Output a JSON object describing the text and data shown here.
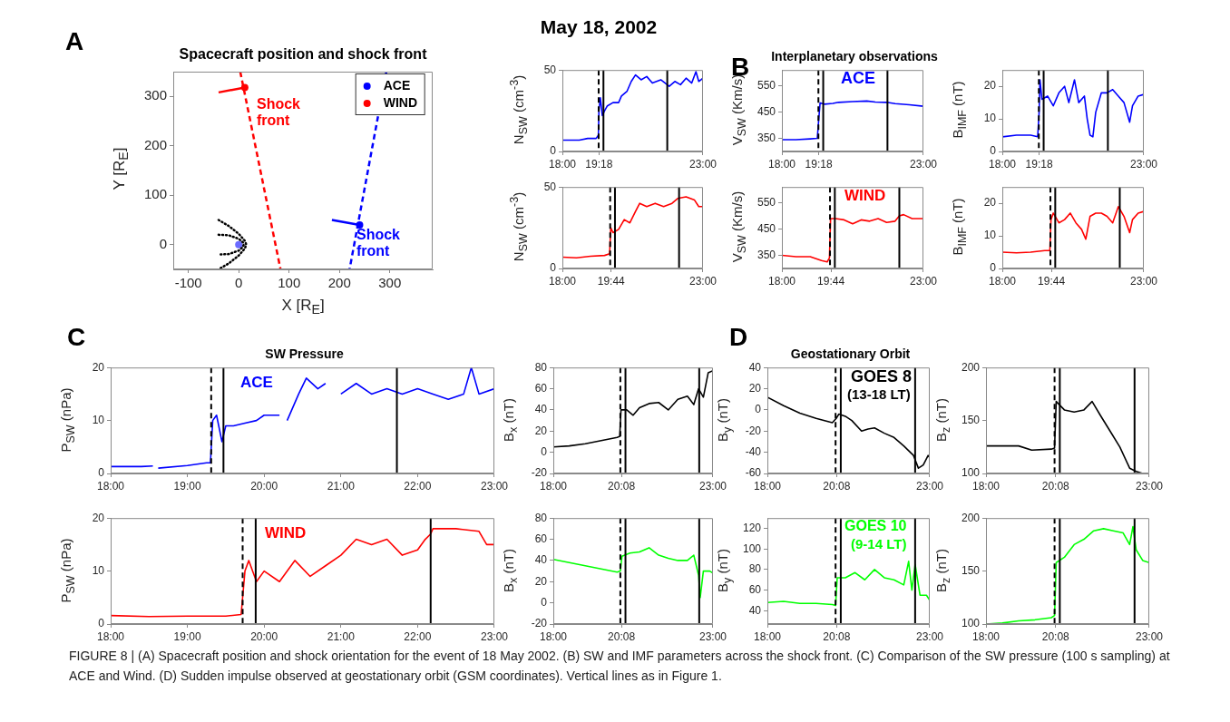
{
  "chart_data": [
    {
      "type": "line",
      "title": "Spacecraft position and shock front",
      "xlabel": "X [R$_{E}$]",
      "ylabel": "Y [R$_{E}$]",
      "xlim": [
        -130,
        385
      ],
      "ylim": [
        -50,
        350
      ],
      "xticks": [
        -100,
        0,
        100,
        200,
        300
      ],
      "yticks": [
        0,
        100,
        200,
        300
      ],
      "legend": "top right",
      "series": [
        {
          "color": "#ff0000",
          "line_style": "dashed",
          "x": [
            3,
            83
          ],
          "values": [
            350,
            -50
          ]
        },
        {
          "color": "#0000ff",
          "line_style": "dashed",
          "x": [
            293,
            220
          ],
          "values": [
            350,
            -50
          ]
        },
        {
          "name": "ACE",
          "type": "scatter",
          "marker": "circle",
          "color": "#0000ff",
          "x": [
            240
          ],
          "values": [
            40
          ]
        },
        {
          "name": "WIND",
          "type": "scatter",
          "marker": "circle",
          "color": "#ff0000",
          "x": [
            12
          ],
          "values": [
            318
          ]
        },
        {
          "color": "#0000ff",
          "x": [
            240,
            185
          ],
          "values": [
            40,
            50
          ]
        },
        {
          "color": "#ff0000",
          "x": [
            12,
            -40
          ],
          "values": [
            318,
            308
          ]
        },
        {
          "color": "#000000",
          "line_style": "dotted",
          "x": [
            -40,
            -20,
            0,
            12,
            15,
            12,
            0,
            -20,
            -40
          ],
          "values": [
            50,
            38,
            22,
            8,
            0,
            -8,
            -22,
            -38,
            -50
          ]
        },
        {
          "color": "#000000",
          "line_style": "dotted",
          "x": [
            -40,
            -20,
            0,
            8,
            10,
            8,
            0,
            -20,
            -40
          ],
          "values": [
            20,
            19,
            12,
            5,
            0,
            -5,
            -12,
            -19,
            -20
          ]
        },
        {
          "type": "scatter",
          "marker": "circle",
          "color": "#6a6aff",
          "x": [
            0
          ],
          "values": [
            0
          ]
        }
      ],
      "annotations": [
        "Shock front",
        "Shock front",
        "A"
      ]
    },
    {
      "type": "line",
      "ylabel": "N$_{SW}$ (cm$^{-3}$)",
      "xlim": [
        18,
        23
      ],
      "ylim": [
        0,
        50
      ],
      "xticks": [
        {
          "value": 18,
          "label": "18:00"
        },
        {
          "value": 19.3,
          "label": "19:18"
        },
        {
          "value": 23,
          "label": "23:00"
        }
      ],
      "yticks": [
        0,
        50
      ],
      "series": [
        {
          "color": "#0000ff",
          "x": [
            18,
            18.3,
            18.6,
            18.9,
            19.2,
            19.28,
            19.3,
            19.35,
            19.42,
            19.5,
            19.6,
            19.8,
            20,
            20.1,
            20.3,
            20.45,
            20.6,
            20.8,
            21,
            21.2,
            21.5,
            21.8,
            22,
            22.2,
            22.4,
            22.6,
            22.75,
            22.85,
            23
          ],
          "values": [
            7,
            7,
            7,
            8,
            8,
            10,
            25,
            33,
            22,
            25,
            28,
            30,
            30,
            34,
            37,
            43,
            47,
            44,
            46,
            42,
            44,
            40,
            43,
            41,
            45,
            42,
            49,
            43,
            45
          ]
        }
      ],
      "ref_lines": [
        {
          "axis": "x",
          "value": 19.29,
          "color": "#000000",
          "line_style": "dashed"
        },
        {
          "axis": "x",
          "value": 19.46,
          "color": "#000000",
          "line_style": "solid"
        },
        {
          "axis": "x",
          "value": 21.73,
          "color": "#000000",
          "line_style": "solid"
        }
      ],
      "annotations": [
        "May 18, 2002"
      ]
    },
    {
      "type": "line",
      "title": "Interplanetary observations",
      "ylabel": "V$_{SW}$ (Km/s)",
      "xlim": [
        18,
        23
      ],
      "ylim": [
        300,
        610
      ],
      "xticks": [
        {
          "value": 18,
          "label": "18:00"
        },
        {
          "value": 19.3,
          "label": "19:18"
        },
        {
          "value": 23,
          "label": "23:00"
        }
      ],
      "yticks": [
        350,
        450,
        550
      ],
      "series": [
        {
          "color": "#0000ff",
          "x": [
            18,
            18.5,
            19,
            19.25,
            19.3,
            19.35,
            19.5,
            19.8,
            20,
            20.5,
            21,
            21.3,
            21.7,
            22,
            22.5,
            23
          ],
          "values": [
            345,
            345,
            348,
            350,
            420,
            485,
            480,
            483,
            487,
            490,
            492,
            488,
            487,
            482,
            478,
            472
          ]
        }
      ],
      "ref_lines": [
        {
          "axis": "x",
          "value": 19.29,
          "color": "#000000",
          "line_style": "dashed"
        },
        {
          "axis": "x",
          "value": 19.46,
          "color": "#000000",
          "line_style": "solid"
        },
        {
          "axis": "x",
          "value": 21.73,
          "color": "#000000",
          "line_style": "solid"
        }
      ],
      "annotations": [
        "ACE",
        "B"
      ]
    },
    {
      "type": "line",
      "ylabel": "B$_{IMF}$ (nT)",
      "xlim": [
        18,
        23
      ],
      "ylim": [
        0,
        25
      ],
      "xticks": [
        {
          "value": 18,
          "label": "18:00"
        },
        {
          "value": 19.3,
          "label": "19:18"
        },
        {
          "value": 23,
          "label": "23:00"
        }
      ],
      "yticks": [
        0,
        10,
        20
      ],
      "series": [
        {
          "color": "#0000ff",
          "x": [
            18,
            18.5,
            19,
            19.25,
            19.3,
            19.33,
            19.4,
            19.6,
            19.8,
            20,
            20.2,
            20.35,
            20.55,
            20.7,
            20.9,
            21,
            21.1,
            21.2,
            21.3,
            21.5,
            21.7,
            21.9,
            22.1,
            22.3,
            22.5,
            22.6,
            22.8,
            23
          ],
          "values": [
            4.5,
            5,
            5,
            4.5,
            12,
            22,
            16,
            17,
            14,
            18,
            20,
            15,
            22,
            15,
            17,
            10,
            5,
            4.5,
            12,
            18,
            18,
            19,
            17,
            15,
            9,
            14,
            17,
            17.5
          ]
        }
      ],
      "ref_lines": [
        {
          "axis": "x",
          "value": 19.29,
          "color": "#000000",
          "line_style": "dashed"
        },
        {
          "axis": "x",
          "value": 19.46,
          "color": "#000000",
          "line_style": "solid"
        },
        {
          "axis": "x",
          "value": 21.73,
          "color": "#000000",
          "line_style": "solid"
        }
      ]
    },
    {
      "type": "line",
      "ylabel": "N$_{SW}$ (cm$^{-3}$)",
      "xlim": [
        18,
        23
      ],
      "ylim": [
        0,
        50
      ],
      "xticks": [
        {
          "value": 18,
          "label": "18:00"
        },
        {
          "value": 19.733,
          "label": "19:44"
        },
        {
          "value": 23,
          "label": "23:00"
        }
      ],
      "yticks": [
        0,
        50
      ],
      "series": [
        {
          "color": "#ff0000",
          "x": [
            18,
            18.5,
            19,
            19.5,
            19.68,
            19.72,
            19.8,
            20,
            20.2,
            20.4,
            20.6,
            20.75,
            21,
            21.3,
            21.6,
            21.9,
            22.1,
            22.4,
            22.7,
            22.85,
            23
          ],
          "values": [
            7,
            6.5,
            7.5,
            8,
            9,
            25,
            22,
            24,
            30,
            28,
            35,
            40,
            38,
            40,
            38,
            40,
            43,
            44,
            42,
            38,
            38
          ]
        }
      ],
      "ref_lines": [
        {
          "axis": "x",
          "value": 19.7,
          "color": "#000000",
          "line_style": "dashed"
        },
        {
          "axis": "x",
          "value": 19.87,
          "color": "#000000",
          "line_style": "solid"
        },
        {
          "axis": "x",
          "value": 22.15,
          "color": "#000000",
          "line_style": "solid"
        }
      ]
    },
    {
      "type": "line",
      "ylabel": "V$_{SW}$ (Km/s)",
      "xlim": [
        18,
        23
      ],
      "ylim": [
        300,
        610
      ],
      "xticks": [
        {
          "value": 18,
          "label": "18:00"
        },
        {
          "value": 19.733,
          "label": "19:44"
        },
        {
          "value": 23,
          "label": "23:00"
        }
      ],
      "yticks": [
        350,
        450,
        550
      ],
      "series": [
        {
          "color": "#ff0000",
          "x": [
            18,
            18.5,
            19,
            19.4,
            19.6,
            19.68,
            19.72,
            19.9,
            20.2,
            20.5,
            20.8,
            21.1,
            21.4,
            21.7,
            22,
            22.15,
            22.3,
            22.6,
            23
          ],
          "values": [
            350,
            345,
            345,
            330,
            325,
            340,
            490,
            490,
            485,
            470,
            485,
            480,
            490,
            475,
            480,
            500,
            505,
            490,
            490
          ]
        }
      ],
      "ref_lines": [
        {
          "axis": "x",
          "value": 19.7,
          "color": "#000000",
          "line_style": "dashed"
        },
        {
          "axis": "x",
          "value": 19.87,
          "color": "#000000",
          "line_style": "solid"
        },
        {
          "axis": "x",
          "value": 22.15,
          "color": "#000000",
          "line_style": "solid"
        }
      ],
      "annotations": [
        "WIND"
      ]
    },
    {
      "type": "line",
      "ylabel": "B$_{IMF}$ (nT)",
      "xlim": [
        18,
        23
      ],
      "ylim": [
        0,
        25
      ],
      "xticks": [
        {
          "value": 18,
          "label": "18:00"
        },
        {
          "value": 19.733,
          "label": "19:44"
        },
        {
          "value": 23,
          "label": "23:00"
        }
      ],
      "yticks": [
        0,
        10,
        20
      ],
      "series": [
        {
          "color": "#ff0000",
          "x": [
            18,
            18.5,
            19,
            19.5,
            19.68,
            19.72,
            19.8,
            20,
            20.2,
            20.4,
            20.6,
            20.8,
            20.95,
            21.1,
            21.3,
            21.5,
            21.7,
            21.9,
            22.1,
            22.3,
            22.5,
            22.6,
            22.8,
            23
          ],
          "values": [
            5,
            4.8,
            5,
            5.5,
            5.5,
            15,
            17,
            14,
            15,
            17,
            14,
            12,
            9,
            16,
            17,
            17,
            16,
            14,
            19,
            16,
            11,
            15,
            17,
            17.5
          ]
        }
      ],
      "ref_lines": [
        {
          "axis": "x",
          "value": 19.7,
          "color": "#000000",
          "line_style": "dashed"
        },
        {
          "axis": "x",
          "value": 19.87,
          "color": "#000000",
          "line_style": "solid"
        },
        {
          "axis": "x",
          "value": 22.15,
          "color": "#000000",
          "line_style": "solid"
        }
      ]
    },
    {
      "type": "line",
      "title": "SW Pressure",
      "ylabel": "P$_{SW}$ (nPa)",
      "xlim": [
        18,
        23
      ],
      "ylim": [
        0,
        20
      ],
      "xticks": [
        {
          "value": 18,
          "label": "18:00"
        },
        {
          "value": 19,
          "label": "19:00"
        },
        {
          "value": 20,
          "label": "20:00"
        },
        {
          "value": 21,
          "label": "21:00"
        },
        {
          "value": 22,
          "label": "22:00"
        },
        {
          "value": 23,
          "label": "23:00"
        }
      ],
      "yticks": [
        0,
        10,
        20
      ],
      "series": [
        {
          "color": "#0000ff",
          "x": [
            18,
            18.4,
            18.55,
            18.6,
            18.62,
            19,
            19.25,
            19.3,
            19.33,
            19.38,
            19.45,
            19.5,
            19.6,
            19.75,
            19.9,
            20,
            20.2,
            20.27,
            20.3,
            20.45,
            20.55,
            20.7,
            20.8,
            20.9,
            21,
            21.2,
            21.4,
            21.6,
            21.8,
            22,
            22.2,
            22.4,
            22.6,
            22.7,
            22.8,
            23
          ],
          "values": [
            1.3,
            1.3,
            1.4,
            null,
            1,
            1.5,
            2,
            2,
            10,
            11,
            6,
            9,
            9,
            9.5,
            10,
            11,
            11,
            null,
            10,
            15,
            18,
            16,
            17,
            null,
            15,
            17,
            15,
            16,
            15,
            16,
            15,
            14,
            15,
            20,
            15,
            16
          ]
        }
      ],
      "ref_lines": [
        {
          "axis": "x",
          "value": 19.31,
          "color": "#000000",
          "line_style": "dashed"
        },
        {
          "axis": "x",
          "value": 19.47,
          "color": "#000000",
          "line_style": "solid"
        },
        {
          "axis": "x",
          "value": 21.73,
          "color": "#000000",
          "line_style": "solid"
        }
      ],
      "annotations": [
        "ACE",
        "C"
      ]
    },
    {
      "type": "line",
      "ylabel": "B$_{x}$ (nT)",
      "xlim": [
        18,
        23
      ],
      "ylim": [
        -20,
        80
      ],
      "xticks": [
        {
          "value": 18,
          "label": "18:00"
        },
        {
          "value": 20.133,
          "label": "20:08"
        },
        {
          "value": 23,
          "label": "23:00"
        }
      ],
      "yticks": [
        -20,
        0,
        20,
        40,
        60,
        80
      ],
      "series": [
        {
          "color": "#000000",
          "x": [
            18,
            18.5,
            19,
            19.5,
            20,
            20.08,
            20.12,
            20.3,
            20.5,
            20.7,
            21,
            21.3,
            21.6,
            21.9,
            22.2,
            22.4,
            22.55,
            22.7,
            22.85,
            23
          ],
          "values": [
            5,
            6,
            8,
            11,
            14,
            15,
            40,
            40,
            35,
            42,
            46,
            47,
            40,
            50,
            53,
            45,
            60,
            52,
            75,
            77
          ]
        }
      ],
      "ref_lines": [
        {
          "axis": "x",
          "value": 20.1,
          "color": "#000000",
          "line_style": "dashed"
        },
        {
          "axis": "x",
          "value": 20.26,
          "color": "#000000",
          "line_style": "solid"
        },
        {
          "axis": "x",
          "value": 22.57,
          "color": "#000000",
          "line_style": "solid"
        }
      ]
    },
    {
      "type": "line",
      "title": "Geostationary Orbit",
      "ylabel": "B$_{y}$ (nT)",
      "xlim": [
        18,
        23
      ],
      "ylim": [
        -60,
        40
      ],
      "xticks": [
        {
          "value": 18,
          "label": "18:00"
        },
        {
          "value": 20.133,
          "label": "20:08"
        },
        {
          "value": 23,
          "label": "23:00"
        }
      ],
      "yticks": [
        -60,
        -40,
        -20,
        0,
        20,
        40
      ],
      "series": [
        {
          "color": "#000000",
          "x": [
            18,
            18.5,
            19,
            19.5,
            20,
            20.12,
            20.2,
            20.4,
            20.6,
            20.9,
            21.1,
            21.3,
            21.6,
            21.9,
            22.2,
            22.5,
            22.65,
            22.8,
            22.95,
            23
          ],
          "values": [
            12,
            4,
            -3,
            -8,
            -12,
            -8,
            -4,
            -6,
            -10,
            -20,
            -18,
            -17,
            -22,
            -26,
            -34,
            -43,
            -55,
            -52,
            -43,
            -45
          ]
        }
      ],
      "ref_lines": [
        {
          "axis": "x",
          "value": 20.1,
          "color": "#000000",
          "line_style": "dashed"
        },
        {
          "axis": "x",
          "value": 20.26,
          "color": "#000000",
          "line_style": "solid"
        },
        {
          "axis": "x",
          "value": 22.55,
          "color": "#000000",
          "line_style": "solid"
        }
      ],
      "annotations": [
        "GOES 8",
        "(13-18 LT)",
        "D"
      ]
    },
    {
      "type": "line",
      "ylabel": "B$_{z}$ (nT)",
      "xlim": [
        18,
        23
      ],
      "ylim": [
        100,
        200
      ],
      "xticks": [
        {
          "value": 18,
          "label": "18:00"
        },
        {
          "value": 20.133,
          "label": "20:08"
        },
        {
          "value": 23,
          "label": "23:00"
        }
      ],
      "yticks": [
        100,
        150,
        200
      ],
      "series": [
        {
          "color": "#000000",
          "x": [
            18,
            18.5,
            19,
            19.4,
            20,
            20.1,
            20.15,
            20.4,
            20.7,
            21,
            21.25,
            21.5,
            21.8,
            22.1,
            22.4,
            22.6,
            22.8
          ],
          "values": [
            126,
            126,
            126,
            122,
            123,
            124,
            168,
            160,
            158,
            160,
            168,
            155,
            140,
            125,
            105,
            102,
            100
          ]
        }
      ],
      "ref_lines": [
        {
          "axis": "x",
          "value": 20.1,
          "color": "#000000",
          "line_style": "dashed"
        },
        {
          "axis": "x",
          "value": 20.26,
          "color": "#000000",
          "line_style": "solid"
        },
        {
          "axis": "x",
          "value": 22.55,
          "color": "#000000",
          "line_style": "solid"
        }
      ]
    },
    {
      "type": "line",
      "ylabel": "P$_{SW}$ (nPa)",
      "xlim": [
        18,
        23
      ],
      "ylim": [
        0,
        20
      ],
      "xticks": [
        {
          "value": 18,
          "label": "18:00"
        },
        {
          "value": 19,
          "label": "19:00"
        },
        {
          "value": 20,
          "label": "20:00"
        },
        {
          "value": 21,
          "label": "21:00"
        },
        {
          "value": 22,
          "label": "22:00"
        },
        {
          "value": 23,
          "label": "23:00"
        }
      ],
      "yticks": [
        0,
        10,
        20
      ],
      "series": [
        {
          "color": "#ff0000",
          "x": [
            18,
            18.5,
            19,
            19.5,
            19.7,
            19.75,
            19.8,
            19.9,
            20,
            20.2,
            20.4,
            20.6,
            20.8,
            21,
            21.2,
            21.4,
            21.6,
            21.8,
            22,
            22.1,
            22.17,
            22.2,
            22.5,
            22.8,
            22.9,
            23
          ],
          "values": [
            1.6,
            1.4,
            1.5,
            1.5,
            1.8,
            10,
            12,
            8,
            10,
            8,
            12,
            9,
            11,
            13,
            16,
            15,
            16,
            13,
            14,
            16,
            17,
            18,
            18,
            17.5,
            15,
            15
          ]
        }
      ],
      "ref_lines": [
        {
          "axis": "x",
          "value": 19.72,
          "color": "#000000",
          "line_style": "dashed"
        },
        {
          "axis": "x",
          "value": 19.89,
          "color": "#000000",
          "line_style": "solid"
        },
        {
          "axis": "x",
          "value": 22.17,
          "color": "#000000",
          "line_style": "solid"
        }
      ],
      "annotations": [
        "WIND"
      ]
    },
    {
      "type": "line",
      "ylabel": "B$_{x}$ (nT)",
      "xlim": [
        18,
        23
      ],
      "ylim": [
        -20,
        80
      ],
      "xticks": [
        {
          "value": 18,
          "label": "18:00"
        },
        {
          "value": 20.133,
          "label": "20:08"
        },
        {
          "value": 23,
          "label": "23:00"
        }
      ],
      "yticks": [
        -20,
        0,
        20,
        40,
        60,
        80
      ],
      "series": [
        {
          "color": "#00ff00",
          "x": [
            18,
            18.5,
            19,
            19.5,
            20,
            20.1,
            20.15,
            20.4,
            20.7,
            21,
            21.3,
            21.6,
            21.9,
            22.2,
            22.4,
            22.55,
            22.6,
            22.7,
            22.9,
            23
          ],
          "values": [
            41,
            38,
            35,
            32,
            29,
            30,
            44,
            47,
            48,
            52,
            45,
            42,
            40,
            40,
            45,
            26,
            5,
            30,
            30,
            28
          ]
        }
      ],
      "ref_lines": [
        {
          "axis": "x",
          "value": 20.1,
          "color": "#000000",
          "line_style": "dashed"
        },
        {
          "axis": "x",
          "value": 20.26,
          "color": "#000000",
          "line_style": "solid"
        },
        {
          "axis": "x",
          "value": 22.57,
          "color": "#000000",
          "line_style": "solid"
        }
      ]
    },
    {
      "type": "line",
      "ylabel": "B$_{y}$ (nT)",
      "xlim": [
        18,
        23
      ],
      "ylim": [
        27,
        130
      ],
      "xticks": [
        {
          "value": 18,
          "label": "18:00"
        },
        {
          "value": 20.133,
          "label": "20:08"
        },
        {
          "value": 23,
          "label": "23:00"
        }
      ],
      "yticks": [
        40,
        60,
        80,
        100,
        120
      ],
      "series": [
        {
          "color": "#00ff00",
          "x": [
            18,
            18.5,
            19,
            19.5,
            20,
            20.1,
            20.15,
            20.4,
            20.7,
            21,
            21.3,
            21.6,
            21.9,
            22.2,
            22.35,
            22.45,
            22.55,
            22.7,
            22.9,
            23
          ],
          "values": [
            48,
            49,
            47,
            47,
            46,
            45,
            72,
            72,
            77,
            70,
            80,
            72,
            70,
            65,
            88,
            60,
            85,
            55,
            55,
            50
          ]
        }
      ],
      "ref_lines": [
        {
          "axis": "x",
          "value": 20.1,
          "color": "#000000",
          "line_style": "dashed"
        },
        {
          "axis": "x",
          "value": 20.26,
          "color": "#000000",
          "line_style": "solid"
        },
        {
          "axis": "x",
          "value": 22.55,
          "color": "#000000",
          "line_style": "solid"
        }
      ],
      "annotations": [
        "GOES 10",
        "(9-14 LT)"
      ]
    },
    {
      "type": "line",
      "ylabel": "B$_{z}$ (nT)",
      "xlim": [
        18,
        23
      ],
      "ylim": [
        100,
        200
      ],
      "xticks": [
        {
          "value": 18,
          "label": "18:00"
        },
        {
          "value": 20.133,
          "label": "20:08"
        },
        {
          "value": 23,
          "label": "23:00"
        }
      ],
      "yticks": [
        100,
        150,
        200
      ],
      "series": [
        {
          "color": "#00ff00",
          "x": [
            18,
            18.5,
            19,
            19.5,
            20,
            20.1,
            20.15,
            20.4,
            20.7,
            21,
            21.3,
            21.6,
            21.9,
            22.2,
            22.4,
            22.5,
            22.6,
            22.8,
            23
          ],
          "values": [
            100,
            101,
            103,
            104,
            106,
            108,
            158,
            163,
            175,
            180,
            188,
            190,
            188,
            186,
            175,
            192,
            170,
            160,
            158
          ]
        }
      ],
      "ref_lines": [
        {
          "axis": "x",
          "value": 20.1,
          "color": "#000000",
          "line_style": "dashed"
        },
        {
          "axis": "x",
          "value": 20.26,
          "color": "#000000",
          "line_style": "solid"
        },
        {
          "axis": "x",
          "value": 22.55,
          "color": "#000000",
          "line_style": "solid"
        }
      ],
      "annotations": [
        "FIGURE 8 | (A) Spacecraft position and shock orientation for the event of 18 May 2002. (B) SW and IMF parameters across the shock front. (C) Comparison of the SW pressure (100 s sampling) at ACE and Wind. (D) Sudden impulse observed at geostationary orbit (GSM coordinates). Vertical lines as in Figure 1."
      ]
    }
  ]
}
